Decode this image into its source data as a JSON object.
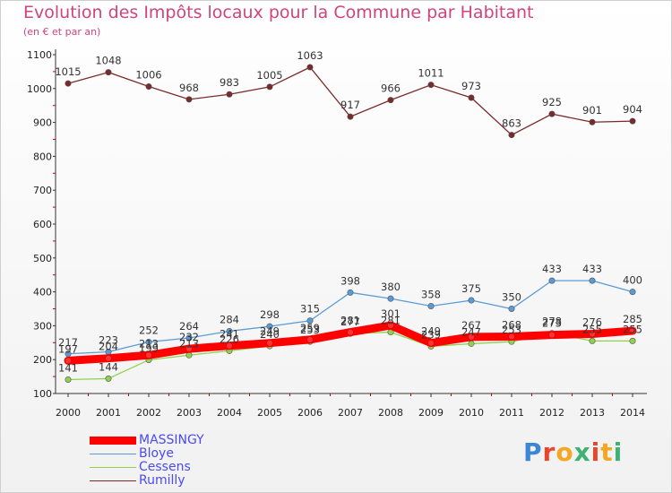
{
  "header": {
    "title": "Evolution des Impôts locaux pour la Commune par Habitant",
    "subtitle": "(en € et par an)"
  },
  "logo": {
    "text": "Proxiti",
    "colors": [
      "#3c86d6",
      "#e8462b",
      "#f5a623",
      "#3cb371",
      "#e8462b",
      "#f5a623",
      "#3cb371"
    ]
  },
  "chart_data": {
    "type": "line",
    "x": [
      2000,
      2001,
      2002,
      2003,
      2004,
      2005,
      2006,
      2007,
      2008,
      2009,
      2010,
      2011,
      2012,
      2013,
      2014
    ],
    "ylim": [
      100,
      1100
    ],
    "yticks": [
      100,
      200,
      300,
      400,
      500,
      600,
      700,
      800,
      900,
      1000,
      1100
    ],
    "grid": false,
    "legend": "bottom-left",
    "series": [
      {
        "name": "MASSINGY",
        "color": "#ff0000",
        "thick": true,
        "labels": false,
        "values": [
          197,
          204,
          213,
          232,
          241,
          249,
          259,
          281,
          301,
          249,
          267,
          268,
          273,
          276,
          285
        ]
      },
      {
        "name": "Bloye",
        "color": "#5b9bd5",
        "values": [
          217,
          223,
          252,
          264,
          284,
          298,
          315,
          398,
          380,
          358,
          375,
          350,
          433,
          433,
          400
        ]
      },
      {
        "name": "Cessens",
        "color": "#8fd14f",
        "values": [
          141,
          144,
          199,
          213,
          226,
          240,
          253,
          277,
          281,
          239,
          247,
          253,
          278,
          255,
          255
        ]
      },
      {
        "name": "Rumilly",
        "color": "#7a2a2a",
        "values": [
          1015,
          1048,
          1006,
          968,
          983,
          1005,
          1063,
          917,
          966,
          1011,
          973,
          863,
          925,
          901,
          904
        ]
      }
    ],
    "label_series": [
      "Rumilly",
      "Bloye",
      "Cessens",
      "MASSINGY"
    ]
  }
}
